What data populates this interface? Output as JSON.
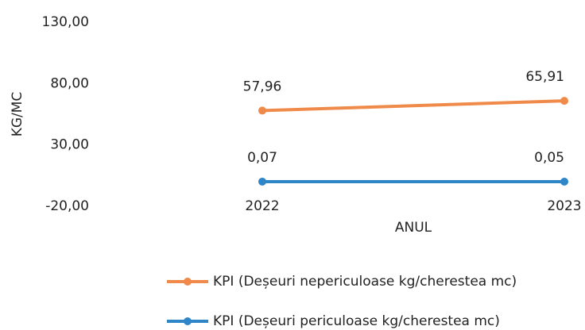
{
  "chart_data": {
    "type": "line",
    "categories": [
      "2022",
      "2023"
    ],
    "series": [
      {
        "name": "KPI (Deșeuri nepericuloase kg/cherestea mc)",
        "color": "#f08a4b",
        "values": [
          57.96,
          65.91
        ],
        "value_labels": [
          "57,96",
          "65,91"
        ]
      },
      {
        "name": "KPI (Deșeuri periculoase kg/cherestea mc)",
        "color": "#2e86c8",
        "values": [
          0.07,
          0.05
        ],
        "value_labels": [
          "0,07",
          "0,05"
        ]
      }
    ],
    "y_label": "KG/MC",
    "x_label": "ANUL",
    "ylim": [
      -20,
      130
    ],
    "yticks": [
      {
        "value": -20,
        "label": "-20,00"
      },
      {
        "value": 30,
        "label": "30,00"
      },
      {
        "value": 80,
        "label": "80,00"
      },
      {
        "value": 130,
        "label": "130,00"
      }
    ],
    "grid": false,
    "legend": "bottom"
  }
}
